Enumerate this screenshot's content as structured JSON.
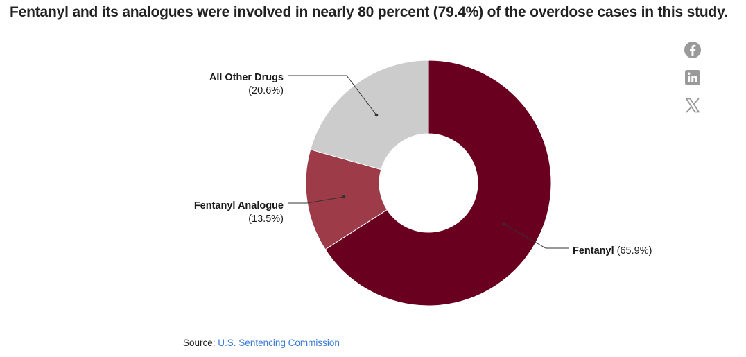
{
  "header": {
    "title": "Fentanyl and its analogues were involved in nearly 80 percent (79.4%) of the overdose cases in this study."
  },
  "social": {
    "facebook": "facebook-icon",
    "linkedin": "linkedin-icon",
    "x": "x-icon",
    "icon_color": "#9a9a9a"
  },
  "chart_data": {
    "type": "pie",
    "donut": true,
    "title": "Fentanyl and its analogues were involved in nearly 80 percent (79.4%) of the overdose cases in this study.",
    "slices": [
      {
        "label": "Fentanyl",
        "value": 65.9,
        "value_text": "(65.9%)",
        "color": "#6a0020"
      },
      {
        "label": "Fentanyl Analogue",
        "value": 13.5,
        "value_text": "(13.5%)",
        "color": "#9e3b48"
      },
      {
        "label": "All Other Drugs",
        "value": 20.6,
        "value_text": "(20.6%)",
        "color": "#cccccc"
      }
    ],
    "legend": "none"
  },
  "footer": {
    "source_label": "Source:",
    "source_link": "U.S. Sentencing Commission",
    "link_color": "#3a7bd5"
  }
}
